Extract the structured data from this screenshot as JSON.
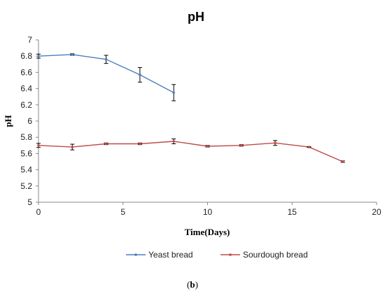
{
  "chart_data": {
    "type": "line",
    "title": "pH",
    "xlabel": "Time(Days)",
    "ylabel": "pH",
    "xlim": [
      0,
      20
    ],
    "ylim": [
      5,
      7
    ],
    "x_ticks": [
      0,
      5,
      10,
      15,
      20
    ],
    "y_ticks": [
      5,
      5.2,
      5.4,
      5.6,
      5.8,
      6,
      6.2,
      6.4,
      6.6,
      6.8,
      7
    ],
    "grid": false,
    "legend_position": "bottom",
    "series": [
      {
        "name": "Yeast bread",
        "color": "#4a7ebb",
        "x": [
          0,
          2,
          4,
          6,
          8
        ],
        "y": [
          6.8,
          6.82,
          6.76,
          6.57,
          6.35
        ],
        "err": [
          0.025,
          0.01,
          0.05,
          0.09,
          0.1
        ]
      },
      {
        "name": "Sourdough bread",
        "color": "#be4b48",
        "x": [
          0,
          2,
          4,
          6,
          8,
          10,
          12,
          14,
          16,
          18
        ],
        "y": [
          5.7,
          5.68,
          5.72,
          5.72,
          5.75,
          5.69,
          5.7,
          5.73,
          5.68,
          5.5
        ],
        "err": [
          0.025,
          0.035,
          0.01,
          0.01,
          0.03,
          0.01,
          0.01,
          0.03,
          0.005,
          0.01
        ]
      }
    ]
  },
  "panel_label": "b"
}
